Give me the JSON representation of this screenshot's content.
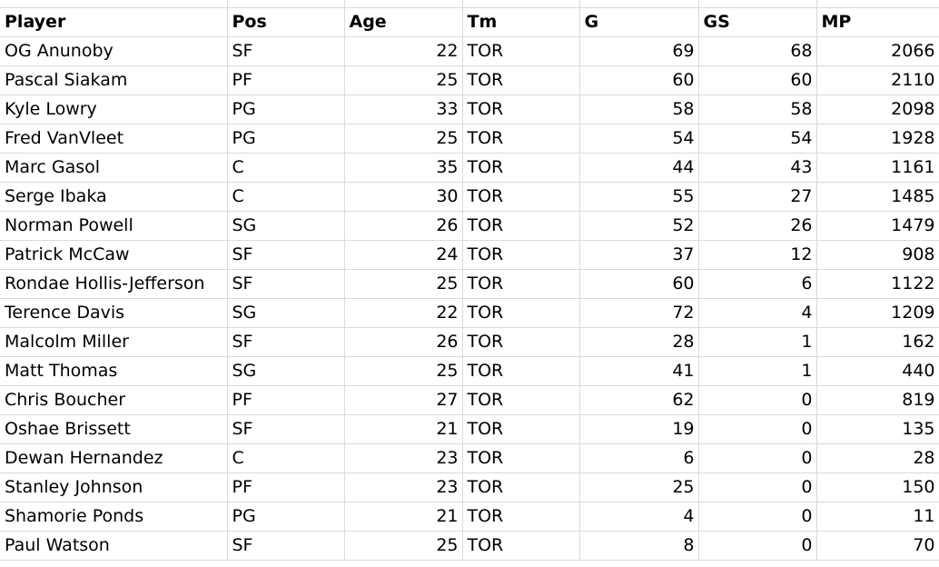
{
  "sheet": {
    "columns": [
      "Player",
      "Pos",
      "Age",
      "Tm",
      "G",
      "GS",
      "MP"
    ],
    "rows": [
      [
        "OG Anunoby",
        "SF",
        "22",
        "TOR",
        "69",
        "68",
        "2066"
      ],
      [
        "Pascal Siakam",
        "PF",
        "25",
        "TOR",
        "60",
        "60",
        "2110"
      ],
      [
        "Kyle Lowry",
        "PG",
        "33",
        "TOR",
        "58",
        "58",
        "2098"
      ],
      [
        "Fred VanVleet",
        "PG",
        "25",
        "TOR",
        "54",
        "54",
        "1928"
      ],
      [
        "Marc Gasol",
        "C",
        "35",
        "TOR",
        "44",
        "43",
        "1161"
      ],
      [
        "Serge Ibaka",
        "C",
        "30",
        "TOR",
        "55",
        "27",
        "1485"
      ],
      [
        "Norman Powell",
        "SG",
        "26",
        "TOR",
        "52",
        "26",
        "1479"
      ],
      [
        "Patrick McCaw",
        "SF",
        "24",
        "TOR",
        "37",
        "12",
        "908"
      ],
      [
        "Rondae Hollis-Jefferson",
        "SF",
        "25",
        "TOR",
        "60",
        "6",
        "1122"
      ],
      [
        "Terence Davis",
        "SG",
        "22",
        "TOR",
        "72",
        "4",
        "1209"
      ],
      [
        "Malcolm Miller",
        "SF",
        "26",
        "TOR",
        "28",
        "1",
        "162"
      ],
      [
        "Matt Thomas",
        "SG",
        "25",
        "TOR",
        "41",
        "1",
        "440"
      ],
      [
        "Chris Boucher",
        "PF",
        "27",
        "TOR",
        "62",
        "0",
        "819"
      ],
      [
        "Oshae Brissett",
        "SF",
        "21",
        "TOR",
        "19",
        "0",
        "135"
      ],
      [
        "Dewan Hernandez",
        "C",
        "23",
        "TOR",
        "6",
        "0",
        "28"
      ],
      [
        "Stanley Johnson",
        "PF",
        "23",
        "TOR",
        "25",
        "0",
        "150"
      ],
      [
        "Shamorie Ponds",
        "PG",
        "21",
        "TOR",
        "4",
        "0",
        "11"
      ],
      [
        "Paul Watson",
        "SF",
        "25",
        "TOR",
        "8",
        "0",
        "70"
      ]
    ],
    "numeric_columns": [
      2,
      4,
      5,
      6
    ],
    "gridline_color": "#d9d9d9"
  }
}
